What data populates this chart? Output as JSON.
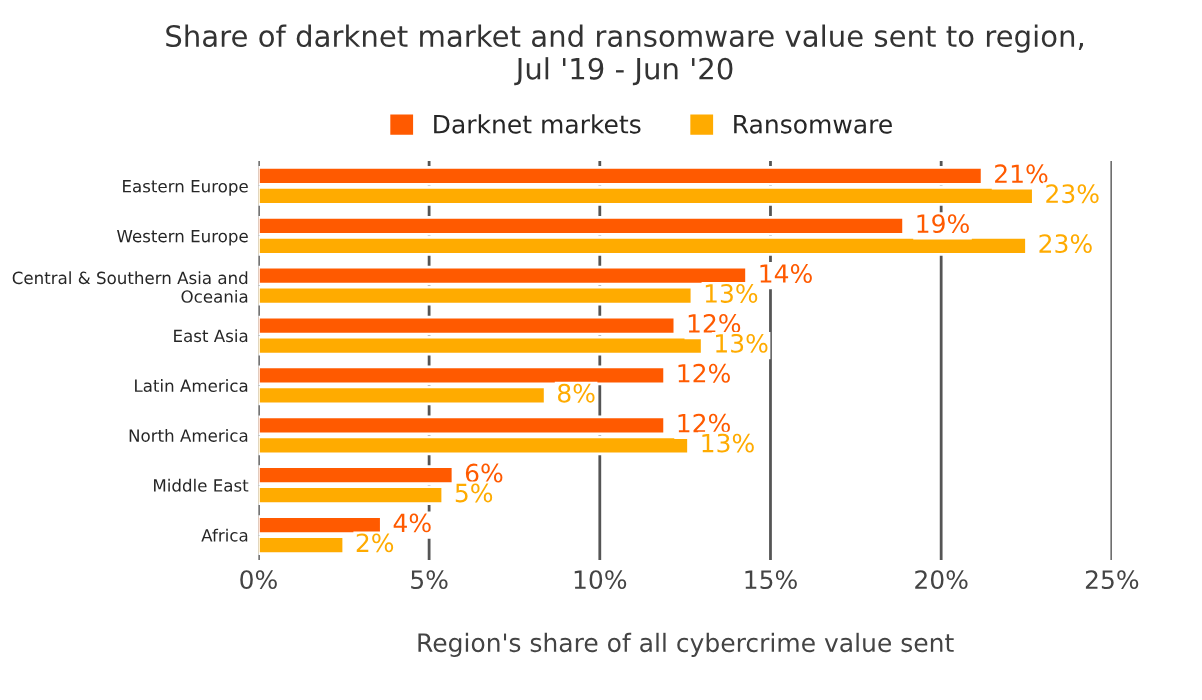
{
  "chart_data": {
    "type": "bar",
    "orientation": "horizontal",
    "title": "Share of darknet market and ransomware value sent to region,\nJul '19 - Jun '20",
    "xlabel": "Region's share of all cybercrime value sent",
    "categories": [
      "Eastern Europe",
      "Western Europe",
      "Central & Southern Asia and\nOceania",
      "East Asia",
      "Latin America",
      "North America",
      "Middle East",
      "Africa"
    ],
    "series": [
      {
        "name": "Darknet markets",
        "color": "#ff5a00",
        "values": [
          21.2,
          18.9,
          14.3,
          12.2,
          11.9,
          11.9,
          5.7,
          3.6
        ],
        "value_labels": [
          "21%",
          "19%",
          "14%",
          "12%",
          "12%",
          "12%",
          "6%",
          "4%"
        ]
      },
      {
        "name": "Ransomware",
        "color": "#ffab00",
        "values": [
          22.7,
          22.5,
          12.7,
          13.0,
          8.4,
          12.6,
          5.4,
          2.5
        ],
        "value_labels": [
          "23%",
          "23%",
          "13%",
          "13%",
          "8%",
          "13%",
          "5%",
          "2%"
        ]
      }
    ],
    "xlim": [
      0,
      25
    ],
    "xticks": [
      {
        "value": 0,
        "label": "0%"
      },
      {
        "value": 5,
        "label": "5%"
      },
      {
        "value": 10,
        "label": "10%"
      },
      {
        "value": 15,
        "label": "15%"
      },
      {
        "value": 20,
        "label": "20%"
      },
      {
        "value": 25,
        "label": "25%"
      }
    ],
    "grid": "x",
    "legend": "top"
  }
}
